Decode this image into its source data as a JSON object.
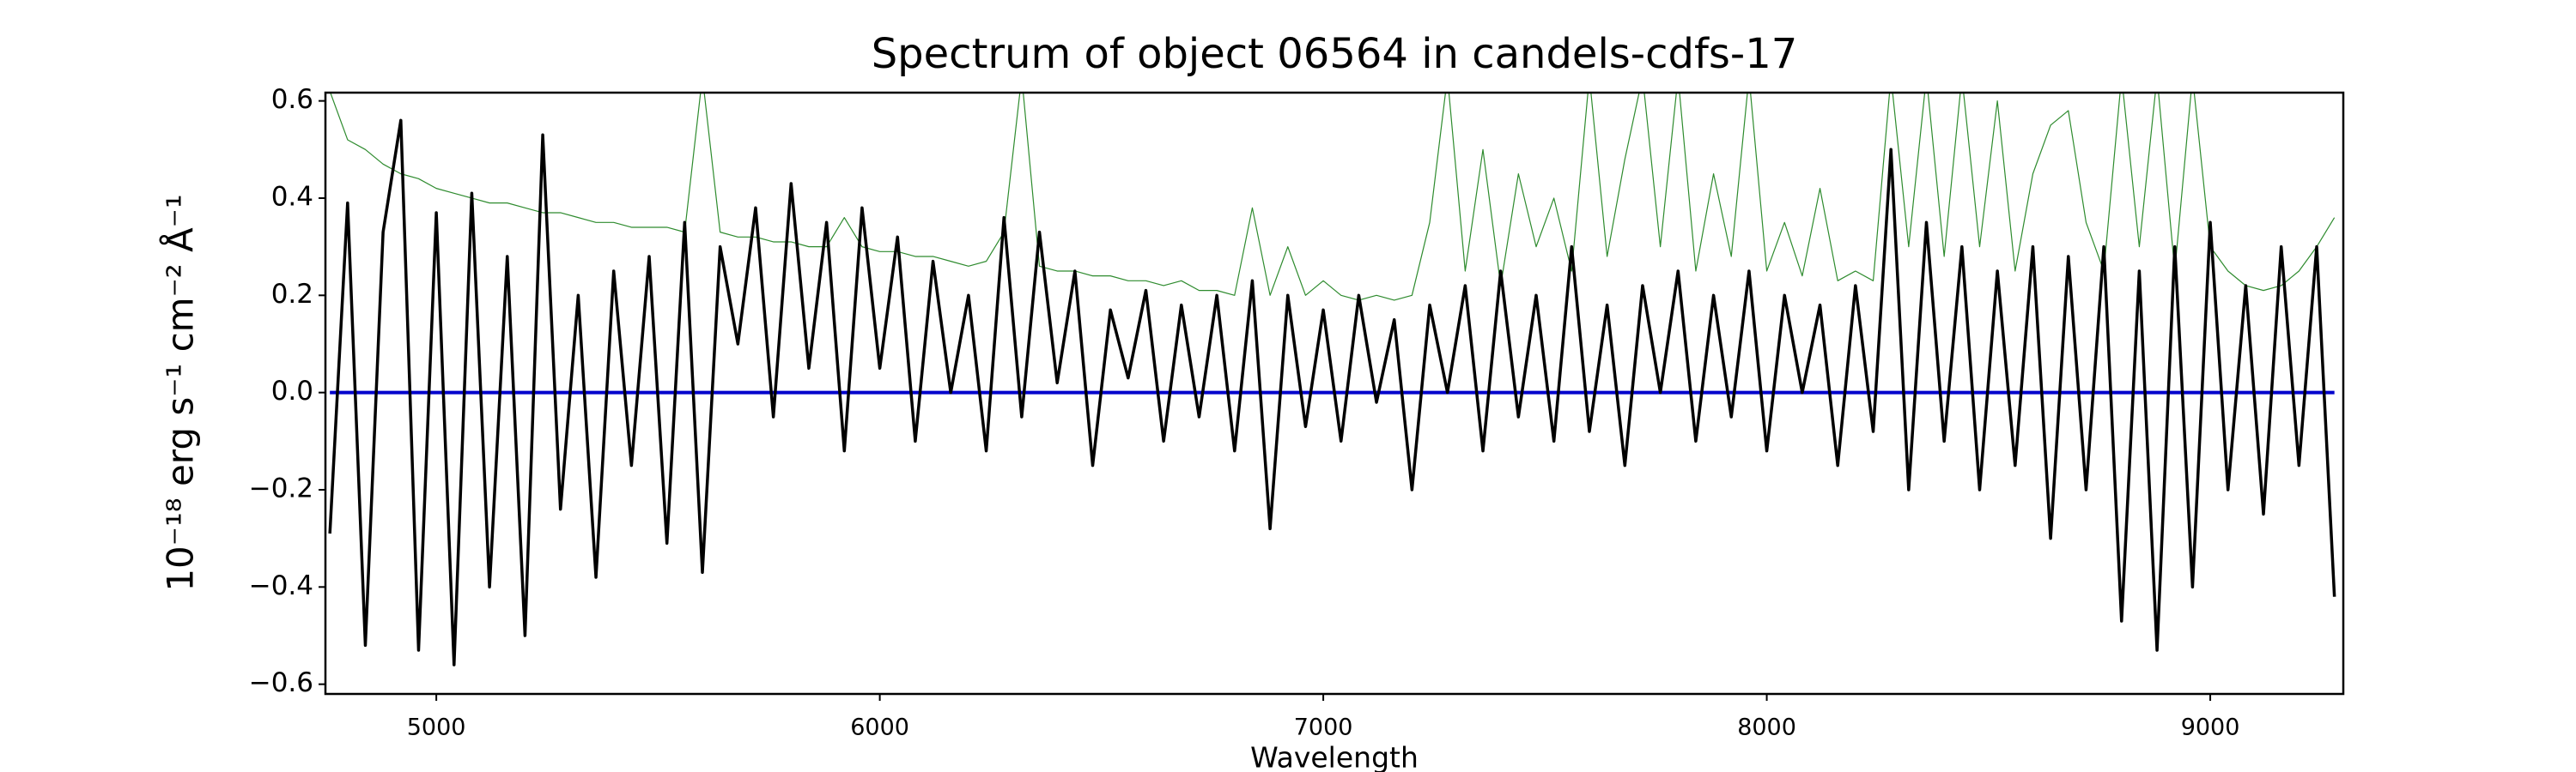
{
  "chart_data": {
    "type": "line",
    "title": "Spectrum of object 06564 in candels-cdfs-17",
    "x_label": "Wavelength",
    "y_label": "10⁻¹⁸ erg s⁻¹ cm⁻² Å⁻¹",
    "xlim": [
      4750,
      9300
    ],
    "ylim": [
      -0.62,
      0.617
    ],
    "xticks": [
      5000,
      6000,
      7000,
      8000,
      9000
    ],
    "yticks": [
      {
        "value": -0.6,
        "label": "−0.6"
      },
      {
        "value": -0.4,
        "label": "−0.4"
      },
      {
        "value": -0.2,
        "label": "−0.2"
      },
      {
        "value": 0,
        "label": "0.0"
      },
      0.2,
      0.4,
      0.6
    ],
    "grid": false,
    "series": [
      {
        "color": "#2e8b2e",
        "width": 1.2,
        "x": [
          4760,
          4800,
          4840,
          4880,
          4920,
          4960,
          5000,
          5040,
          5080,
          5120,
          5160,
          5200,
          5240,
          5280,
          5320,
          5360,
          5400,
          5440,
          5480,
          5520,
          5560,
          5600,
          5640,
          5680,
          5720,
          5760,
          5800,
          5840,
          5880,
          5920,
          5960,
          6000,
          6040,
          6080,
          6120,
          6160,
          6200,
          6240,
          6280,
          6320,
          6360,
          6400,
          6440,
          6480,
          6520,
          6560,
          6600,
          6640,
          6680,
          6720,
          6760,
          6800,
          6840,
          6880,
          6920,
          6960,
          7000,
          7040,
          7080,
          7120,
          7160,
          7200,
          7240,
          7280,
          7320,
          7360,
          7400,
          7440,
          7480,
          7520,
          7560,
          7600,
          7640,
          7680,
          7720,
          7760,
          7800,
          7840,
          7880,
          7920,
          7960,
          8000,
          8040,
          8080,
          8120,
          8160,
          8200,
          8240,
          8280,
          8320,
          8360,
          8400,
          8440,
          8480,
          8520,
          8560,
          8600,
          8640,
          8680,
          8720,
          8760,
          8800,
          8840,
          8880,
          8920,
          8960,
          9000,
          9040,
          9080,
          9120,
          9160,
          9200,
          9240,
          9280
        ],
        "values": [
          0.62,
          0.52,
          0.5,
          0.47,
          0.45,
          0.44,
          0.42,
          0.41,
          0.4,
          0.39,
          0.39,
          0.38,
          0.37,
          0.37,
          0.36,
          0.35,
          0.35,
          0.34,
          0.34,
          0.34,
          0.33,
          0.65,
          0.33,
          0.32,
          0.32,
          0.31,
          0.31,
          0.3,
          0.3,
          0.36,
          0.3,
          0.29,
          0.29,
          0.28,
          0.28,
          0.27,
          0.26,
          0.27,
          0.33,
          0.65,
          0.26,
          0.25,
          0.25,
          0.24,
          0.24,
          0.23,
          0.23,
          0.22,
          0.23,
          0.21,
          0.21,
          0.2,
          0.38,
          0.2,
          0.3,
          0.2,
          0.23,
          0.2,
          0.19,
          0.2,
          0.19,
          0.2,
          0.35,
          0.65,
          0.25,
          0.5,
          0.22,
          0.45,
          0.3,
          0.4,
          0.25,
          0.65,
          0.28,
          0.48,
          0.65,
          0.3,
          0.65,
          0.25,
          0.45,
          0.28,
          0.65,
          0.25,
          0.35,
          0.24,
          0.42,
          0.23,
          0.25,
          0.23,
          0.65,
          0.3,
          0.65,
          0.28,
          0.65,
          0.3,
          0.6,
          0.25,
          0.45,
          0.55,
          0.58,
          0.35,
          0.25,
          0.65,
          0.3,
          0.65,
          0.25,
          0.65,
          0.3,
          0.25,
          0.22,
          0.21,
          0.22,
          0.25,
          0.3,
          0.36
        ]
      },
      {
        "color": "#0000cc",
        "width": 4,
        "x": [
          4760,
          9280
        ],
        "values": [
          0,
          0
        ]
      },
      {
        "color": "#000000",
        "width": 3.5,
        "x": [
          4760,
          4800,
          4840,
          4880,
          4920,
          4960,
          5000,
          5040,
          5080,
          5120,
          5160,
          5200,
          5240,
          5280,
          5320,
          5360,
          5400,
          5440,
          5480,
          5520,
          5560,
          5600,
          5640,
          5680,
          5720,
          5760,
          5800,
          5840,
          5880,
          5920,
          5960,
          6000,
          6040,
          6080,
          6120,
          6160,
          6200,
          6240,
          6280,
          6320,
          6360,
          6400,
          6440,
          6480,
          6520,
          6560,
          6600,
          6640,
          6680,
          6720,
          6760,
          6800,
          6840,
          6880,
          6920,
          6960,
          7000,
          7040,
          7080,
          7120,
          7160,
          7200,
          7240,
          7280,
          7320,
          7360,
          7400,
          7440,
          7480,
          7520,
          7560,
          7600,
          7640,
          7680,
          7720,
          7760,
          7800,
          7840,
          7880,
          7920,
          7960,
          8000,
          8040,
          8080,
          8120,
          8160,
          8200,
          8240,
          8280,
          8320,
          8360,
          8400,
          8440,
          8480,
          8520,
          8560,
          8600,
          8640,
          8680,
          8720,
          8760,
          8800,
          8840,
          8880,
          8920,
          8960,
          9000,
          9040,
          9080,
          9120,
          9160,
          9200,
          9240,
          9280
        ],
        "values": [
          -0.29,
          0.39,
          -0.52,
          0.33,
          0.56,
          -0.53,
          0.37,
          -0.56,
          0.41,
          -0.4,
          0.28,
          -0.5,
          0.53,
          -0.24,
          0.2,
          -0.38,
          0.25,
          -0.15,
          0.28,
          -0.31,
          0.35,
          -0.37,
          0.3,
          0.1,
          0.38,
          -0.05,
          0.43,
          0.05,
          0.35,
          -0.12,
          0.38,
          0.05,
          0.32,
          -0.1,
          0.27,
          0,
          0.2,
          -0.12,
          0.36,
          -0.05,
          0.33,
          0.02,
          0.25,
          -0.15,
          0.17,
          0.03,
          0.21,
          -0.1,
          0.18,
          -0.05,
          0.2,
          -0.12,
          0.23,
          -0.28,
          0.2,
          -0.07,
          0.17,
          -0.1,
          0.2,
          -0.02,
          0.15,
          -0.2,
          0.18,
          0,
          0.22,
          -0.12,
          0.25,
          -0.05,
          0.2,
          -0.1,
          0.3,
          -0.08,
          0.18,
          -0.15,
          0.22,
          0,
          0.25,
          -0.1,
          0.2,
          -0.05,
          0.25,
          -0.12,
          0.2,
          0,
          0.18,
          -0.15,
          0.22,
          -0.08,
          0.5,
          -0.2,
          0.35,
          -0.1,
          0.3,
          -0.2,
          0.25,
          -0.15,
          0.3,
          -0.3,
          0.28,
          -0.2,
          0.3,
          -0.47,
          0.25,
          -0.53,
          0.3,
          -0.4,
          0.35,
          -0.2,
          0.22,
          -0.25,
          0.3,
          -0.15,
          0.3,
          -0.42
        ]
      }
    ]
  }
}
